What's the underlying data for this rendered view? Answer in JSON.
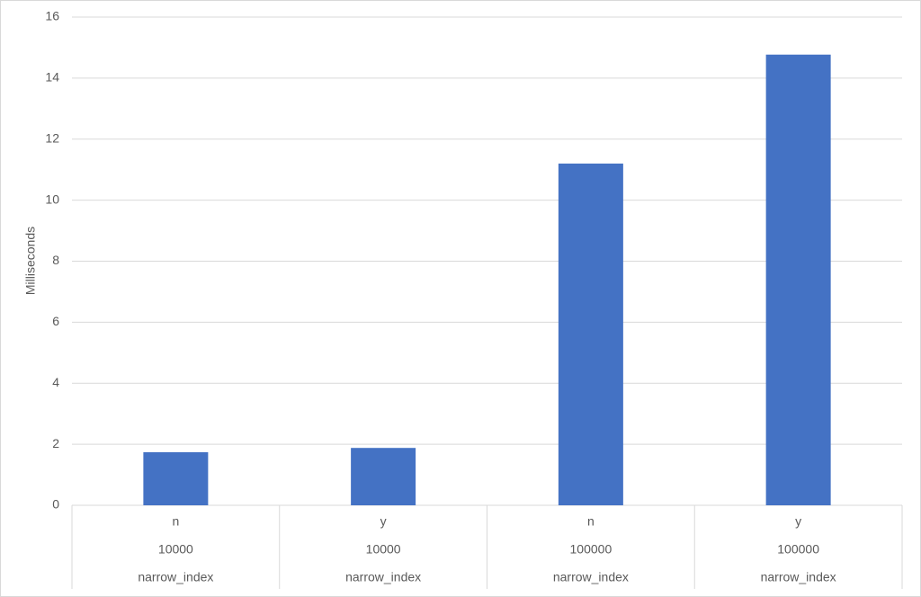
{
  "chart_data": {
    "type": "bar",
    "y_label": "Milliseconds",
    "categories": [
      "n",
      "y",
      "n",
      "y"
    ],
    "category_groups": [
      [
        "10000",
        "10000",
        "100000",
        "100000"
      ],
      [
        "narrow_index",
        "narrow_index",
        "narrow_index",
        "narrow_index"
      ]
    ],
    "values": [
      1.74,
      1.88,
      11.2,
      14.77
    ],
    "color": "#4472c4",
    "ylim": [
      0,
      16
    ],
    "yticks": [
      0,
      2,
      4,
      6,
      8,
      10,
      12,
      14,
      16
    ],
    "grid": true
  }
}
